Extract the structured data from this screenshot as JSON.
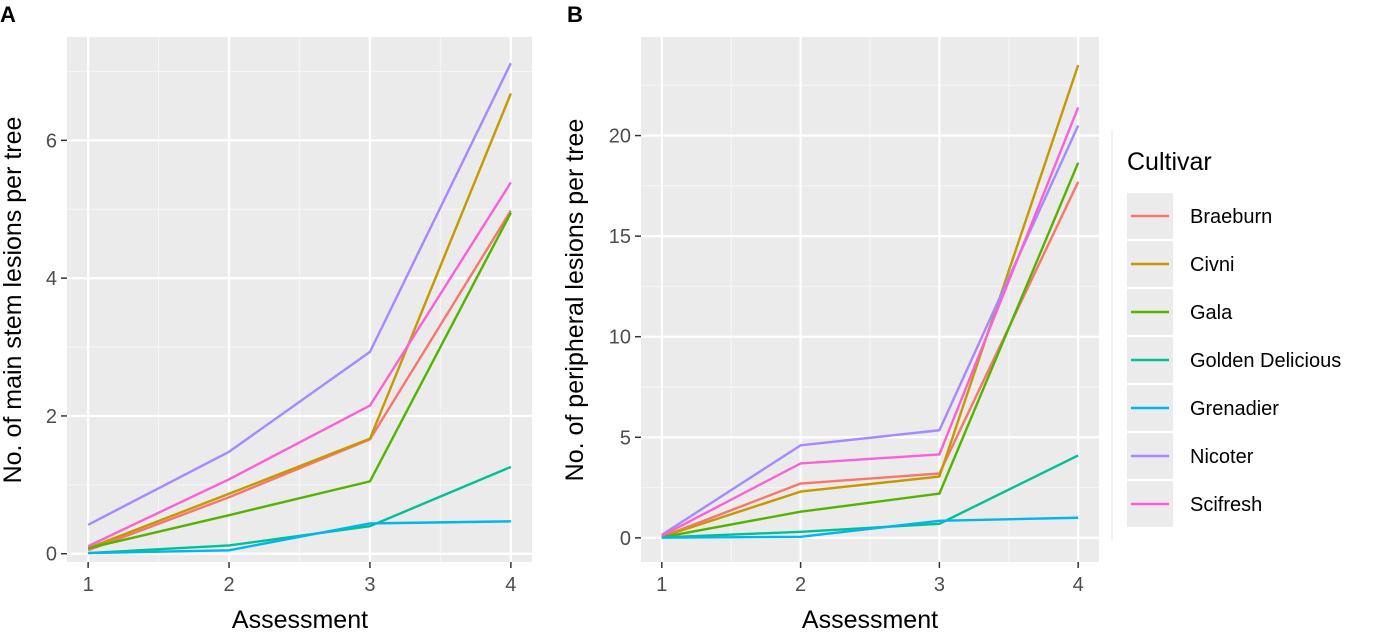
{
  "colors": {
    "panel_bg": "#EBEBEB",
    "grid_major": "#FFFFFF",
    "grid_minor": "#F5F5F5",
    "tick_text": "#4D4D4D",
    "axis_title": "#1A1A1A"
  },
  "legend": {
    "title": "Cultivar",
    "items": [
      {
        "label": "Braeburn",
        "color": "#F8766D"
      },
      {
        "label": "Civni",
        "color": "#C49A00"
      },
      {
        "label": "Gala",
        "color": "#53B400"
      },
      {
        "label": "Golden Delicious",
        "color": "#00C094"
      },
      {
        "label": "Grenadier",
        "color": "#00B6EB"
      },
      {
        "label": "Nicoter",
        "color": "#A58AFF"
      },
      {
        "label": "Scifresh",
        "color": "#FB61D7"
      }
    ]
  },
  "chart_data": [
    {
      "panel": "A",
      "type": "line",
      "xlabel": "Assessment",
      "ylabel": "No. of main stem lesions per tree",
      "x": [
        1,
        2,
        3,
        4
      ],
      "xlim": [
        0.85,
        4.15
      ],
      "ylim": [
        -0.12,
        7.5
      ],
      "xticks": [
        1,
        2,
        3,
        4
      ],
      "yticks": [
        0,
        2,
        4,
        6
      ],
      "series": [
        {
          "name": "Braeburn",
          "values": [
            0.05,
            0.82,
            1.66,
            4.98
          ]
        },
        {
          "name": "Civni",
          "values": [
            0.08,
            0.87,
            1.67,
            6.68
          ]
        },
        {
          "name": "Gala",
          "values": [
            0.08,
            0.56,
            1.05,
            4.95
          ]
        },
        {
          "name": "Golden Delicious",
          "values": [
            0.01,
            0.12,
            0.4,
            1.26
          ]
        },
        {
          "name": "Grenadier",
          "values": [
            0.01,
            0.05,
            0.44,
            0.47
          ]
        },
        {
          "name": "Nicoter",
          "values": [
            0.42,
            1.48,
            2.93,
            7.12
          ]
        },
        {
          "name": "Scifresh",
          "values": [
            0.11,
            1.08,
            2.15,
            5.39
          ]
        }
      ]
    },
    {
      "panel": "B",
      "type": "line",
      "xlabel": "Assessment",
      "ylabel": "No. of peripheral lesions per tree",
      "x": [
        1,
        2,
        3,
        4
      ],
      "xlim": [
        0.85,
        4.15
      ],
      "ylim": [
        -1.2,
        24.9
      ],
      "xticks": [
        1,
        2,
        3,
        4
      ],
      "yticks": [
        0,
        5,
        10,
        15,
        20
      ],
      "series": [
        {
          "name": "Braeburn",
          "values": [
            0.05,
            2.7,
            3.2,
            17.7
          ]
        },
        {
          "name": "Civni",
          "values": [
            0.05,
            2.3,
            3.05,
            23.5
          ]
        },
        {
          "name": "Gala",
          "values": [
            0.03,
            1.3,
            2.2,
            18.65
          ]
        },
        {
          "name": "Golden Delicious",
          "values": [
            0.02,
            0.3,
            0.7,
            4.1
          ]
        },
        {
          "name": "Grenadier",
          "values": [
            0.01,
            0.05,
            0.85,
            1.0
          ]
        },
        {
          "name": "Nicoter",
          "values": [
            0.15,
            4.6,
            5.35,
            20.5
          ]
        },
        {
          "name": "Scifresh",
          "values": [
            0.1,
            3.7,
            4.15,
            21.4
          ]
        }
      ]
    }
  ]
}
